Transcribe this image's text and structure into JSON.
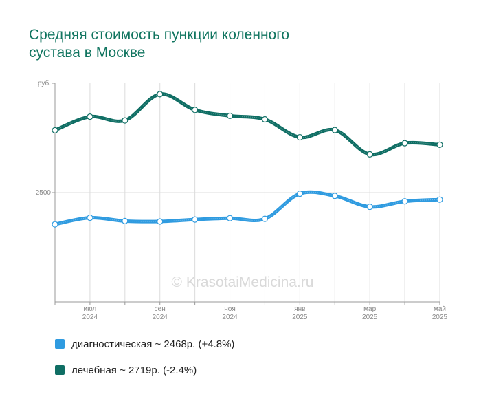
{
  "chart_data": {
    "type": "line",
    "title_lines": [
      "Средняя стоимость пункции коленного",
      "сустава в Москве"
    ],
    "y_unit_label": "руб.",
    "y_ticks": [
      {
        "value": 2500,
        "label": "2500"
      }
    ],
    "ylim": [
      2000,
      3000
    ],
    "x": [
      "2024-06",
      "2024-07",
      "2024-08",
      "2024-09",
      "2024-10",
      "2024-11",
      "2024-12",
      "2025-01",
      "2025-02",
      "2025-03",
      "2025-04",
      "2025-05"
    ],
    "x_tick_labels": [
      {
        "x": "2024-07",
        "month": "июл",
        "year": "2024"
      },
      {
        "x": "2024-09",
        "month": "сен",
        "year": "2024"
      },
      {
        "x": "2024-11",
        "month": "ноя",
        "year": "2024"
      },
      {
        "x": "2025-01",
        "month": "янв",
        "year": "2025"
      },
      {
        "x": "2025-03",
        "month": "мар",
        "year": "2025"
      },
      {
        "x": "2025-05",
        "month": "май",
        "year": "2025"
      }
    ],
    "grid": true,
    "watermark": "© KrasotaiMedicina.ru",
    "series": [
      {
        "name": "диагностическая",
        "color": "#2f9be0",
        "values": [
          2355,
          2385,
          2370,
          2368,
          2377,
          2383,
          2380,
          2495,
          2485,
          2435,
          2460,
          2468
        ]
      },
      {
        "name": "лечебная",
        "color": "#0f6e64",
        "values": [
          2785,
          2847,
          2830,
          2950,
          2878,
          2851,
          2835,
          2753,
          2786,
          2675,
          2726,
          2719
        ]
      }
    ],
    "legend": [
      {
        "text": "диагностическая ~ 2468р. (+4.8%)",
        "color": "#2f9be0"
      },
      {
        "text": "лечебная ~ 2719р. (-2.4%)",
        "color": "#0f6e64"
      }
    ]
  }
}
